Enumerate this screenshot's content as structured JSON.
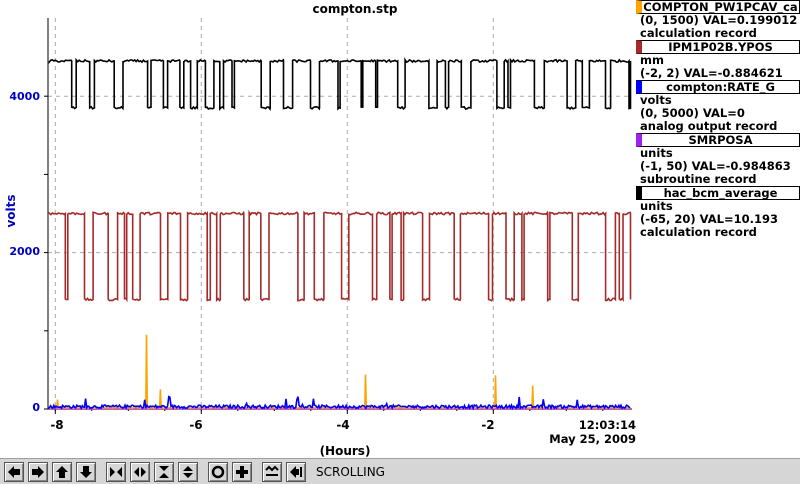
{
  "plot": {
    "title": "compton.stp",
    "ylabel": "volts",
    "xlabel": "(Hours)",
    "time": "12:03:14",
    "date": "May 25, 2009",
    "y_ticks": [
      "4000",
      "2000",
      "0"
    ],
    "x_ticks": [
      "-8",
      "-6",
      "-4",
      "-2"
    ]
  },
  "legend": [
    {
      "name": "COMPTON_PW1PCAV_ca",
      "range": "(0, 1500) VAL=0.199012",
      "units": "",
      "rtype": "calculation record",
      "color": "#ffa500"
    },
    {
      "name": "IPM1P02B.YPOS",
      "range": "(-2, 2) VAL=-0.884621",
      "units": "mm",
      "rtype": "",
      "color": "#a52a2a"
    },
    {
      "name": "compton:RATE_G",
      "range": "(0, 5000) VAL=0",
      "units": "volts",
      "rtype": "analog output record",
      "color": "#0000ff"
    },
    {
      "name": "SMRPOSA",
      "range": "(-1, 50) VAL=-0.984863",
      "units": "units",
      "rtype": "subroutine record",
      "color": "#a020f0"
    },
    {
      "name": "hac_bcm_average",
      "range": "(-65, 20) VAL=10.193",
      "units": "units",
      "rtype": "calculation record",
      "color": "#000000"
    }
  ],
  "toolbar": {
    "buttons": [
      "arrow-left-icon",
      "arrow-right-icon",
      "arrow-up-icon",
      "arrow-down-icon",
      "zoom-in-horizontal-icon",
      "zoom-out-horizontal-icon",
      "zoom-in-vertical-icon",
      "zoom-out-vertical-icon",
      "auto-scale-icon",
      "add-icon",
      "reset-scale-icon",
      "last-icon"
    ],
    "status": "SCROLLING"
  },
  "chart_data": {
    "type": "line",
    "title": "compton.stp",
    "xlabel": "(Hours)",
    "ylabel": "volts",
    "xlim": [
      -8.1,
      -0.1
    ],
    "ylim": [
      0,
      5000
    ],
    "grid": true,
    "legend_placement": "right",
    "series": [
      {
        "name": "hac_bcm_average",
        "color": "#000000",
        "pattern": "square-wave",
        "low": 3850,
        "high": 4450
      },
      {
        "name": "IPM1P02B.YPOS",
        "color": "#a52a2a",
        "pattern": "square-wave",
        "low": 1400,
        "high": 2500
      },
      {
        "name": "compton:RATE_G",
        "color": "#0000ff",
        "pattern": "baseline-noise",
        "level": 30
      },
      {
        "name": "COMPTON_PW1PCAV_ca",
        "color": "#ffa500",
        "pattern": "spikes",
        "level": 10,
        "spikes": [
          {
            "x": -7.97,
            "y": 120
          },
          {
            "x": -6.75,
            "y": 950
          },
          {
            "x": -6.56,
            "y": 250
          },
          {
            "x": -3.75,
            "y": 440
          },
          {
            "x": -1.97,
            "y": 430
          },
          {
            "x": -1.46,
            "y": 300
          }
        ]
      },
      {
        "name": "SMRPOSA",
        "color": "#a020f0",
        "pattern": "flat",
        "level": 0
      }
    ]
  }
}
